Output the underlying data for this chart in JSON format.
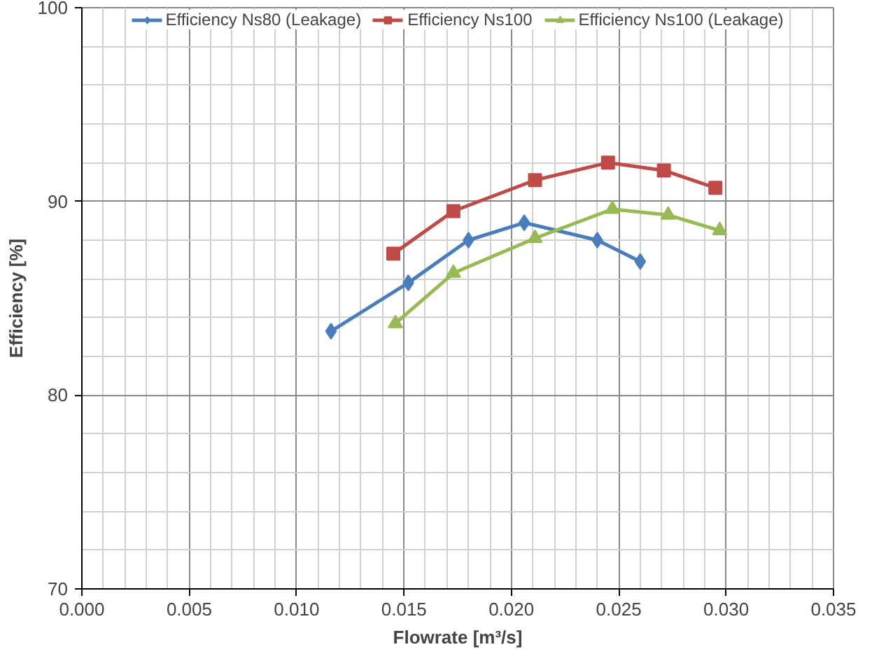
{
  "chart_data": {
    "type": "line",
    "xlabel": "Flowrate [m³/s]",
    "ylabel": "Efficiency [%]",
    "xlim": [
      0,
      0.035
    ],
    "ylim": [
      70,
      100
    ],
    "xticks": [
      {
        "value": 0,
        "label": "0.000"
      },
      {
        "value": 0.005,
        "label": "0.005"
      },
      {
        "value": 0.01,
        "label": "0.010"
      },
      {
        "value": 0.015,
        "label": "0.015"
      },
      {
        "value": 0.02,
        "label": "0.020"
      },
      {
        "value": 0.025,
        "label": "0.025"
      },
      {
        "value": 0.03,
        "label": "0.030"
      },
      {
        "value": 0.035,
        "label": "0.035"
      }
    ],
    "yticks": [
      70,
      80,
      90,
      100
    ],
    "grid": true,
    "legend": "top",
    "series": [
      {
        "name": "Efficiency Ns80 (Leakage)",
        "color": "#4a7ebb",
        "marker": "diamond",
        "x": [
          0.0116,
          0.0152,
          0.018,
          0.0206,
          0.024,
          0.026
        ],
        "values": [
          83.3,
          85.8,
          88.0,
          88.9,
          88.0,
          86.9
        ]
      },
      {
        "name": "Efficiency Ns100",
        "color": "#be4b48",
        "marker": "square",
        "x": [
          0.0145,
          0.0173,
          0.0211,
          0.0245,
          0.0271,
          0.0295
        ],
        "values": [
          87.3,
          89.5,
          91.1,
          92.0,
          91.6,
          90.7
        ]
      },
      {
        "name": "Efficiency Ns100 (Leakage)",
        "color": "#98b954",
        "marker": "triangle",
        "x": [
          0.0146,
          0.0173,
          0.0211,
          0.0247,
          0.0273,
          0.0297
        ],
        "values": [
          83.7,
          86.3,
          88.1,
          89.6,
          89.3,
          88.5
        ]
      }
    ]
  }
}
